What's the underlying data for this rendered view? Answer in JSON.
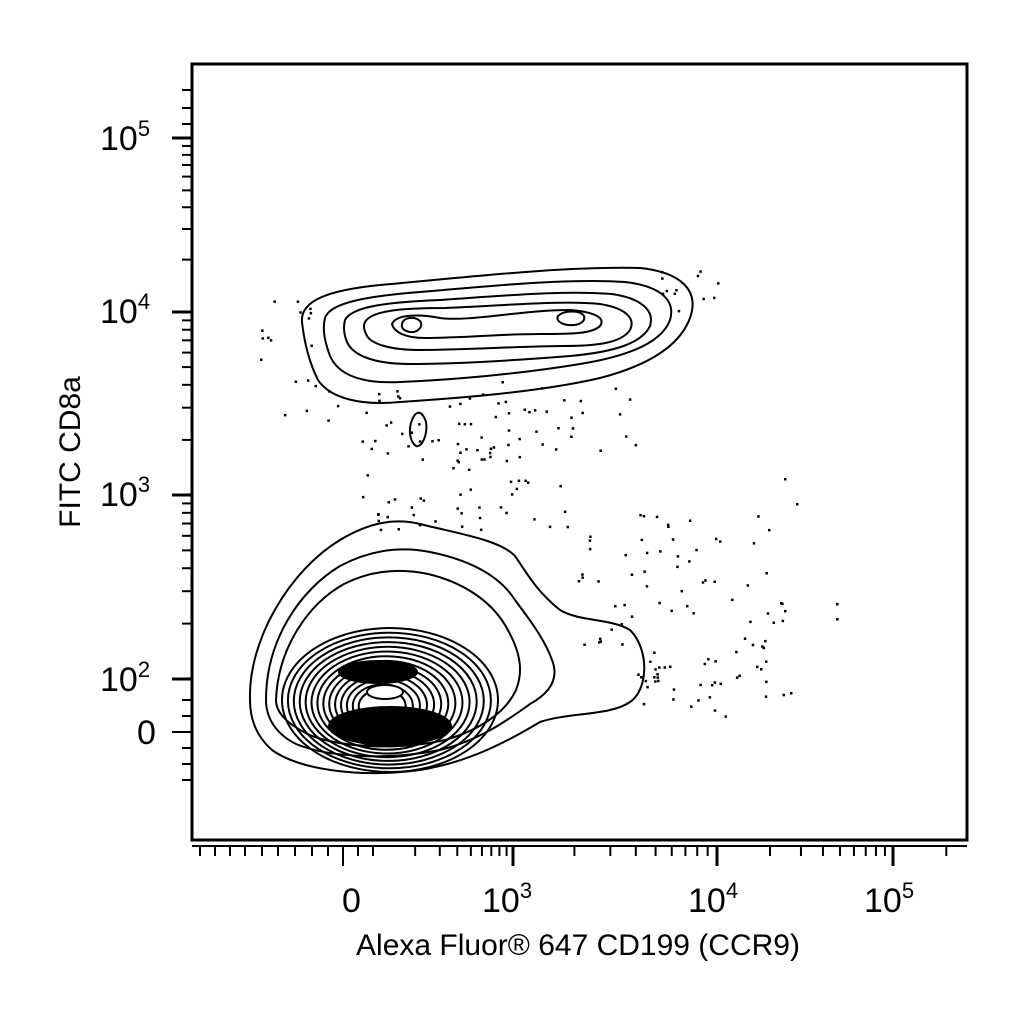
{
  "chart_data": {
    "type": "contour",
    "title": "",
    "xlabel": "Alexa Fluor® 647 CD199 (CCR9)",
    "ylabel": "FITC CD8a",
    "x_scale": "logicle",
    "y_scale": "logicle",
    "x_ticks": [
      {
        "value": 0,
        "base": "0",
        "exp": ""
      },
      {
        "value": 1000,
        "base": "10",
        "exp": "3"
      },
      {
        "value": 10000,
        "base": "10",
        "exp": "4"
      },
      {
        "value": 100000,
        "base": "10",
        "exp": "5"
      }
    ],
    "y_ticks": [
      {
        "value": 0,
        "base": "0",
        "exp": ""
      },
      {
        "value": 100,
        "base": "10",
        "exp": "2"
      },
      {
        "value": 1000,
        "base": "10",
        "exp": "3"
      },
      {
        "value": 10000,
        "base": "10",
        "exp": "4"
      },
      {
        "value": 100000,
        "base": "10",
        "exp": "5"
      }
    ],
    "populations": [
      {
        "name": "",
        "center": [
          200,
          60
        ],
        "note": "dense CD8a-low population"
      },
      {
        "name": "",
        "center": [
          1500,
          9000
        ],
        "note": "CD8a-high population"
      }
    ],
    "grid": false,
    "legend": "none",
    "line_color": "#000000"
  }
}
